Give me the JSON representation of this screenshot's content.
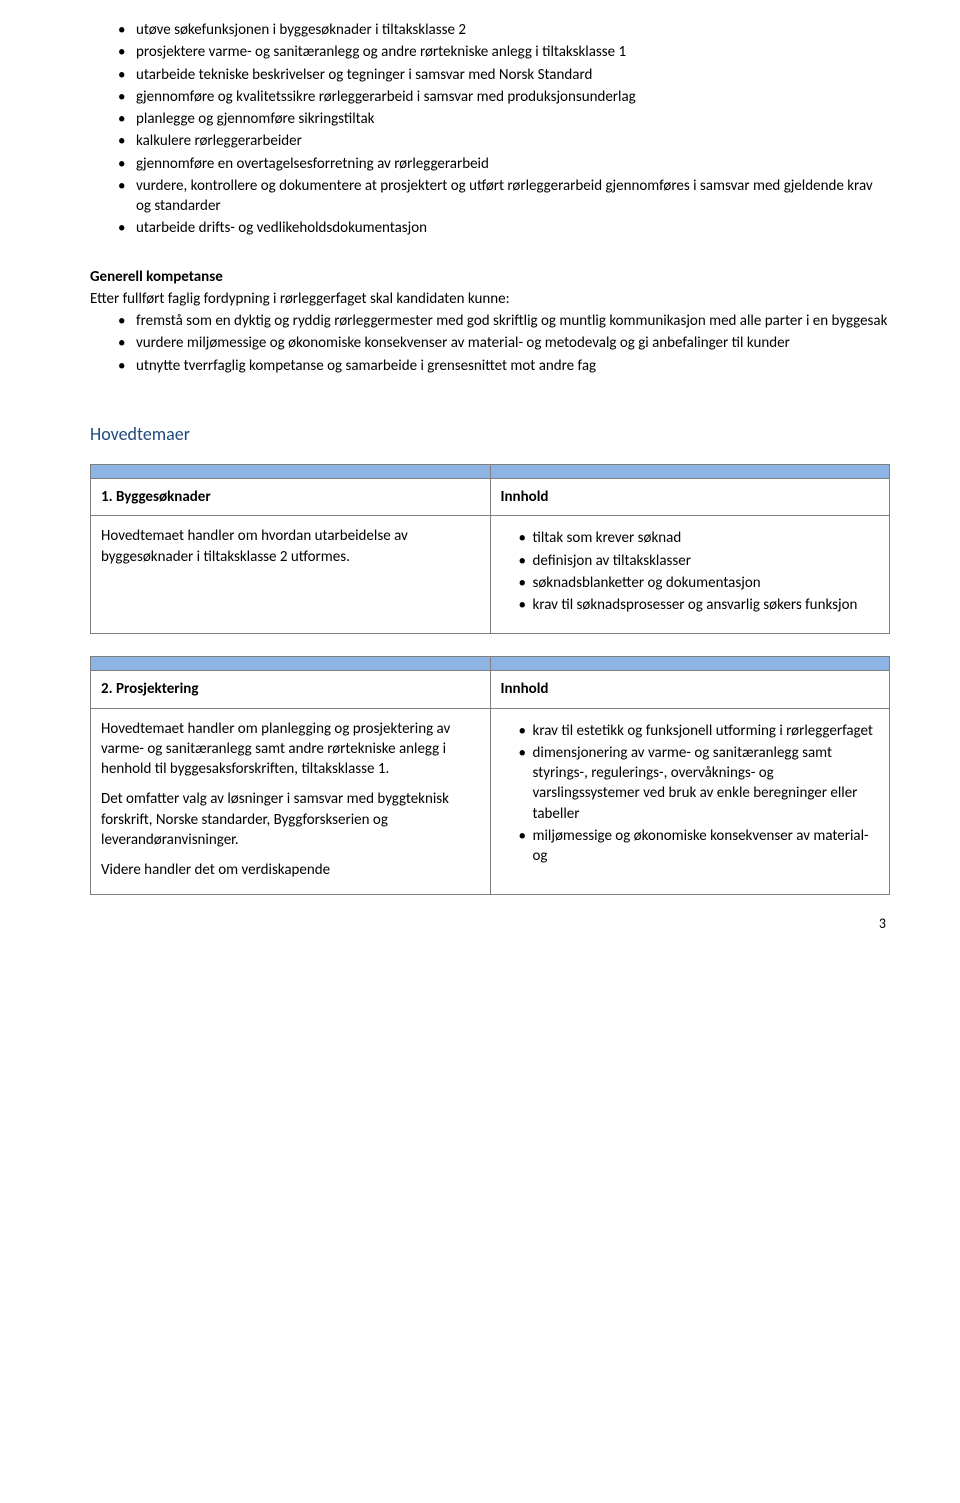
{
  "topList": {
    "items": [
      "utøve søkefunksjonen i byggesøknader i tiltaksklasse 2",
      "prosjektere varme- og sanitæranlegg og andre rørtekniske anlegg i tiltaksklasse 1",
      "utarbeide tekniske beskrivelser og tegninger i samsvar med Norsk Standard",
      "gjennomføre og kvalitetssikre rørleggerarbeid i samsvar med produksjonsunderlag",
      "planlegge og gjennomføre sikringstiltak",
      "kalkulere rørleggerarbeider",
      "gjennomføre en overtagelsesforretning av rørleggerarbeid",
      "vurdere, kontrollere og dokumentere at prosjektert og utført rørleggerarbeid gjennomføres i samsvar med gjeldende krav og standarder",
      "utarbeide drifts- og vedlikeholdsdokumentasjon"
    ]
  },
  "generell": {
    "heading": "Generell kompetanse",
    "intro": "Etter fullført faglig fordypning i rørleggerfaget skal kandidaten kunne:",
    "items": [
      "fremstå som en dyktig og ryddig rørleggermester med god skriftlig og muntlig kommunikasjon med alle parter i en byggesak",
      "vurdere miljømessige og økonomiske konsekvenser av material- og metodevalg og gi anbefalinger til kunder",
      "utnytte tverrfaglig kompetanse og samarbeide i grensesnittet mot andre fag"
    ]
  },
  "hovedtemaer": {
    "heading": "Hovedtemaer"
  },
  "topic1": {
    "title": "1. Byggesøknader",
    "innhold": "Innhold",
    "leftText": "Hovedtemaet handler om hvordan utarbeidelse av byggesøknader i tiltaksklasse 2 utformes.",
    "rightItems": [
      "tiltak som krever søknad",
      "definisjon av tiltaksklasser",
      "søknadsblanketter og dokumentasjon",
      "krav til søknadsprosesser og ansvarlig søkers funksjon"
    ]
  },
  "topic2": {
    "title": "2. Prosjektering",
    "innhold": "Innhold",
    "leftP1": "Hovedtemaet handler om planlegging og prosjektering av varme- og sanitæranlegg samt andre rørtekniske anlegg i henhold til byggesaksforskriften, tiltaksklasse 1.",
    "leftP2": "Det omfatter valg av løsninger i samsvar med byggteknisk forskrift, Norske standarder, Byggforskserien og leverandøranvisninger.",
    "leftP3": "Videre handler det om verdiskapende",
    "rightItems": [
      "krav til estetikk og funksjonell utforming i rørleggerfaget",
      "dimensjonering av varme- og sanitæranlegg samt styrings-, regulerings-, overvåknings- og varslingssystemer ved bruk av enkle beregninger eller tabeller",
      "miljømessige og økonomiske konsekvenser av material- og"
    ]
  },
  "pageNumber": "3"
}
